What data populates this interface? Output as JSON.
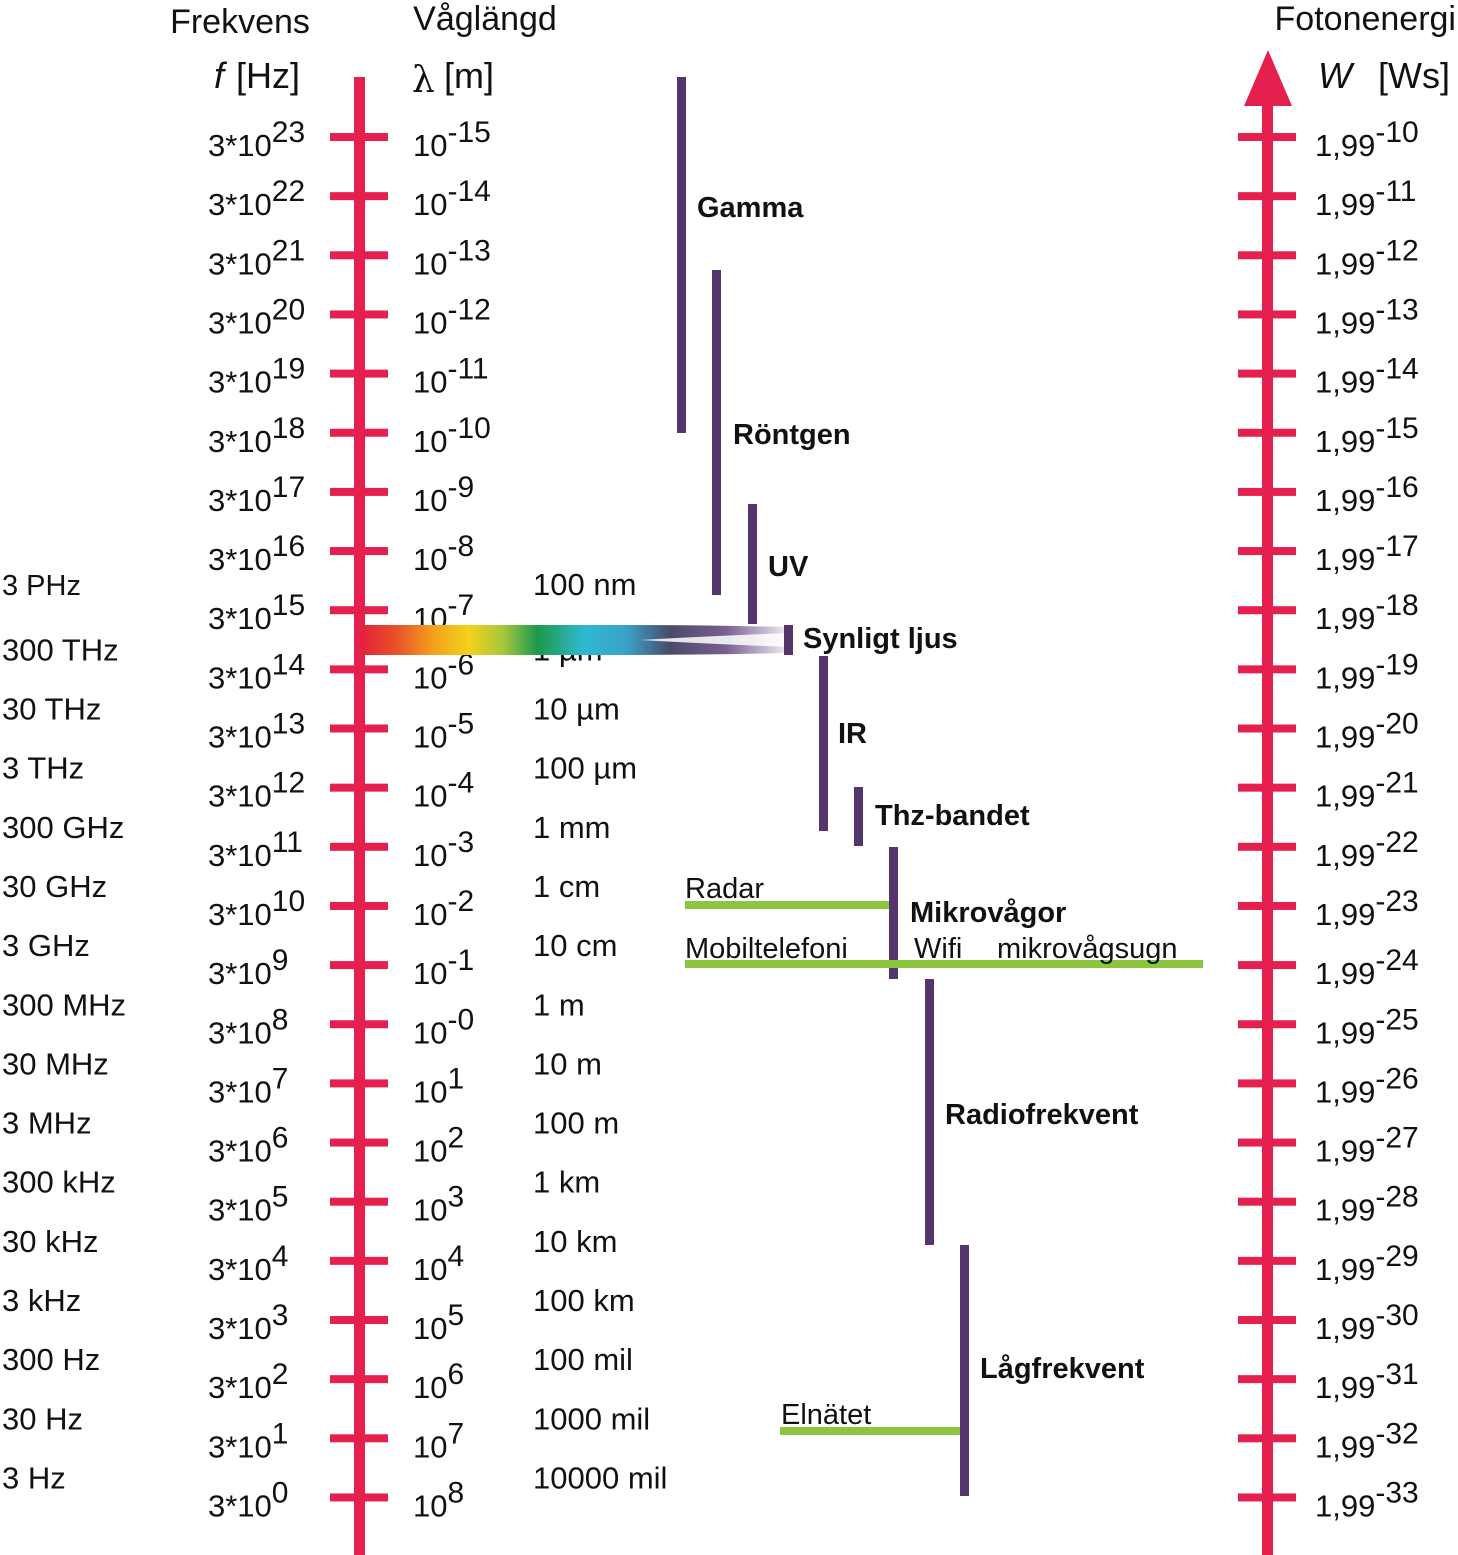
{
  "headers": {
    "frequency_title": "Frekvens",
    "frequency_symbol": "f",
    "frequency_unit": "[Hz]",
    "wavelength_title": "Våglängd",
    "wavelength_symbol": "λ",
    "wavelength_unit": "[m]",
    "energy_title": "Fotonenergi",
    "energy_symbol": "W",
    "energy_unit": "[Ws]"
  },
  "colors": {
    "axis": "#e5204f",
    "band_bar": "#55356e",
    "application_line": "#8cc63f",
    "text": "#111111"
  },
  "rows": [
    {
      "name": "",
      "freq_base": "3*10",
      "freq_exp": "23",
      "wl_base": "10",
      "wl_exp": "-15",
      "wl_text": "",
      "energy_base": "1,99",
      "energy_exp": "-10"
    },
    {
      "name": "",
      "freq_base": "3*10",
      "freq_exp": "22",
      "wl_base": "10",
      "wl_exp": "-14",
      "wl_text": "",
      "energy_base": "1,99",
      "energy_exp": "-11"
    },
    {
      "name": "",
      "freq_base": "3*10",
      "freq_exp": "21",
      "wl_base": "10",
      "wl_exp": "-13",
      "wl_text": "",
      "energy_base": "1,99",
      "energy_exp": "-12"
    },
    {
      "name": "",
      "freq_base": "3*10",
      "freq_exp": "20",
      "wl_base": "10",
      "wl_exp": "-12",
      "wl_text": "",
      "energy_base": "1,99",
      "energy_exp": "-13"
    },
    {
      "name": "",
      "freq_base": "3*10",
      "freq_exp": "19",
      "wl_base": "10",
      "wl_exp": "-11",
      "wl_text": "",
      "energy_base": "1,99",
      "energy_exp": "-14"
    },
    {
      "name": "",
      "freq_base": "3*10",
      "freq_exp": "18",
      "wl_base": "10",
      "wl_exp": "-10",
      "wl_text": "",
      "energy_base": "1,99",
      "energy_exp": "-15"
    },
    {
      "name": "",
      "freq_base": "3*10",
      "freq_exp": "17",
      "wl_base": "10",
      "wl_exp": "-9",
      "wl_text": "",
      "energy_base": "1,99",
      "energy_exp": "-16"
    },
    {
      "name": "",
      "freq_base": "3*10",
      "freq_exp": "16",
      "wl_base": "10",
      "wl_exp": "-8",
      "wl_text": "",
      "energy_base": "1,99",
      "energy_exp": "-17"
    },
    {
      "name": "3 PHz",
      "freq_base": "3*10",
      "freq_exp": "15",
      "wl_base": "10",
      "wl_exp": "-7",
      "wl_text": "100 nm",
      "energy_base": "1,99",
      "energy_exp": "-18"
    },
    {
      "name": "300 THz",
      "freq_base": "3*10",
      "freq_exp": "14",
      "wl_base": "10",
      "wl_exp": "-6",
      "wl_text": "1 µm",
      "energy_base": "1,99",
      "energy_exp": "-19"
    },
    {
      "name": "30 THz",
      "freq_base": "3*10",
      "freq_exp": "13",
      "wl_base": "10",
      "wl_exp": "-5",
      "wl_text": "10 µm",
      "energy_base": "1,99",
      "energy_exp": "-20"
    },
    {
      "name": "3 THz",
      "freq_base": "3*10",
      "freq_exp": "12",
      "wl_base": "10",
      "wl_exp": "-4",
      "wl_text": "100 µm",
      "energy_base": "1,99",
      "energy_exp": "-21"
    },
    {
      "name": "300 GHz",
      "freq_base": "3*10",
      "freq_exp": "11",
      "wl_base": "10",
      "wl_exp": "-3",
      "wl_text": "1 mm",
      "energy_base": "1,99",
      "energy_exp": "-22"
    },
    {
      "name": "30 GHz",
      "freq_base": "3*10",
      "freq_exp": "10",
      "wl_base": "10",
      "wl_exp": "-2",
      "wl_text": "1 cm",
      "energy_base": "1,99",
      "energy_exp": "-23"
    },
    {
      "name": "3 GHz",
      "freq_base": "3*10",
      "freq_exp": "9",
      "wl_base": "10",
      "wl_exp": "-1",
      "wl_text": "10 cm",
      "energy_base": "1,99",
      "energy_exp": "-24"
    },
    {
      "name": "300 MHz",
      "freq_base": "3*10",
      "freq_exp": "8",
      "wl_base": "10",
      "wl_exp": "-0",
      "wl_text": "1 m",
      "energy_base": "1,99",
      "energy_exp": "-25"
    },
    {
      "name": "30 MHz",
      "freq_base": "3*10",
      "freq_exp": "7",
      "wl_base": "10",
      "wl_exp": "1",
      "wl_text": "10 m",
      "energy_base": "1,99",
      "energy_exp": "-26"
    },
    {
      "name": "3 MHz",
      "freq_base": "3*10",
      "freq_exp": "6",
      "wl_base": "10",
      "wl_exp": "2",
      "wl_text": "100 m",
      "energy_base": "1,99",
      "energy_exp": "-27"
    },
    {
      "name": "300 kHz",
      "freq_base": "3*10",
      "freq_exp": "5",
      "wl_base": "10",
      "wl_exp": "3",
      "wl_text": "1 km",
      "energy_base": "1,99",
      "energy_exp": "-28"
    },
    {
      "name": "30 kHz",
      "freq_base": "3*10",
      "freq_exp": "4",
      "wl_base": "10",
      "wl_exp": "4",
      "wl_text": "10 km",
      "energy_base": "1,99",
      "energy_exp": "-29"
    },
    {
      "name": "3 kHz",
      "freq_base": "3*10",
      "freq_exp": "3",
      "wl_base": "10",
      "wl_exp": "5",
      "wl_text": "100 km",
      "energy_base": "1,99",
      "energy_exp": "-30"
    },
    {
      "name": "300 Hz",
      "freq_base": "3*10",
      "freq_exp": "2",
      "wl_base": "10",
      "wl_exp": "6",
      "wl_text": "100 mil",
      "energy_base": "1,99",
      "energy_exp": "-31"
    },
    {
      "name": "30 Hz",
      "freq_base": "3*10",
      "freq_exp": "1",
      "wl_base": "10",
      "wl_exp": "7",
      "wl_text": "1000 mil",
      "energy_base": "1,99",
      "energy_exp": "-32"
    },
    {
      "name": "3 Hz",
      "freq_base": "3*10",
      "freq_exp": "0",
      "wl_base": "10",
      "wl_exp": "8",
      "wl_text": "10000 mil",
      "energy_base": "1,99",
      "energy_exp": "-33"
    }
  ],
  "bands": [
    {
      "label": "Gamma"
    },
    {
      "label": "Röntgen"
    },
    {
      "label": "UV"
    },
    {
      "label": "Synligt ljus"
    },
    {
      "label": "IR"
    },
    {
      "label": "Thz-bandet"
    },
    {
      "label": "Mikrovågor"
    },
    {
      "label": "Radiofrekvent"
    },
    {
      "label": "Lågfrekvent"
    }
  ],
  "applications": [
    {
      "label": "Radar"
    },
    {
      "label": "Mobiltelefoni"
    },
    {
      "label": "Wifi"
    },
    {
      "label": "mikrovågsugn"
    },
    {
      "label": "Elnätet"
    }
  ]
}
